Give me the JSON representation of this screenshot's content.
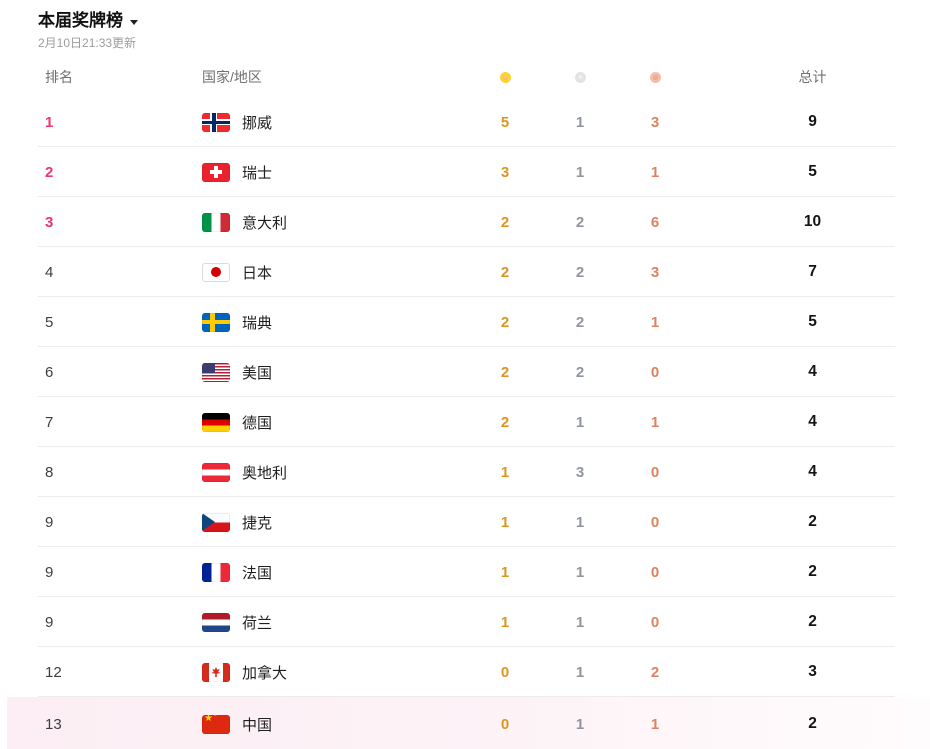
{
  "header": {
    "title": "本届奖牌榜",
    "dropdown_icon": "caret-down",
    "updated": "2月10日21:33更新"
  },
  "columns": {
    "rank": "排名",
    "country": "国家/地区",
    "gold_icon": "gold-medal",
    "silver_icon": "silver-medal",
    "bronze_icon": "bronze-medal",
    "total": "总计"
  },
  "colors": {
    "rank_top3_pink": "#f0346d",
    "gold_number": "#dd9522",
    "silver_number": "#8f959e",
    "bronze_number": "#dc8260",
    "highlight_row": "#fceef4"
  },
  "rows": [
    {
      "rank": "1",
      "country": "挪威",
      "flag": "norway",
      "gold": "5",
      "silver": "1",
      "bronze": "3",
      "total": "9"
    },
    {
      "rank": "2",
      "country": "瑞士",
      "flag": "switzerland",
      "gold": "3",
      "silver": "1",
      "bronze": "1",
      "total": "5"
    },
    {
      "rank": "3",
      "country": "意大利",
      "flag": "italy",
      "gold": "2",
      "silver": "2",
      "bronze": "6",
      "total": "10"
    },
    {
      "rank": "4",
      "country": "日本",
      "flag": "japan",
      "gold": "2",
      "silver": "2",
      "bronze": "3",
      "total": "7"
    },
    {
      "rank": "5",
      "country": "瑞典",
      "flag": "sweden",
      "gold": "2",
      "silver": "2",
      "bronze": "1",
      "total": "5"
    },
    {
      "rank": "6",
      "country": "美国",
      "flag": "usa",
      "gold": "2",
      "silver": "2",
      "bronze": "0",
      "total": "4"
    },
    {
      "rank": "7",
      "country": "德国",
      "flag": "germany",
      "gold": "2",
      "silver": "1",
      "bronze": "1",
      "total": "4"
    },
    {
      "rank": "8",
      "country": "奥地利",
      "flag": "austria",
      "gold": "1",
      "silver": "3",
      "bronze": "0",
      "total": "4"
    },
    {
      "rank": "9",
      "country": "捷克",
      "flag": "czech",
      "gold": "1",
      "silver": "1",
      "bronze": "0",
      "total": "2"
    },
    {
      "rank": "9",
      "country": "法国",
      "flag": "france",
      "gold": "1",
      "silver": "1",
      "bronze": "0",
      "total": "2"
    },
    {
      "rank": "9",
      "country": "荷兰",
      "flag": "netherlands",
      "gold": "1",
      "silver": "1",
      "bronze": "0",
      "total": "2"
    },
    {
      "rank": "12",
      "country": "加拿大",
      "flag": "canada",
      "gold": "0",
      "silver": "1",
      "bronze": "2",
      "total": "3"
    },
    {
      "rank": "13",
      "country": "中国",
      "flag": "china",
      "gold": "0",
      "silver": "1",
      "bronze": "1",
      "total": "2",
      "highlighted": true
    }
  ]
}
